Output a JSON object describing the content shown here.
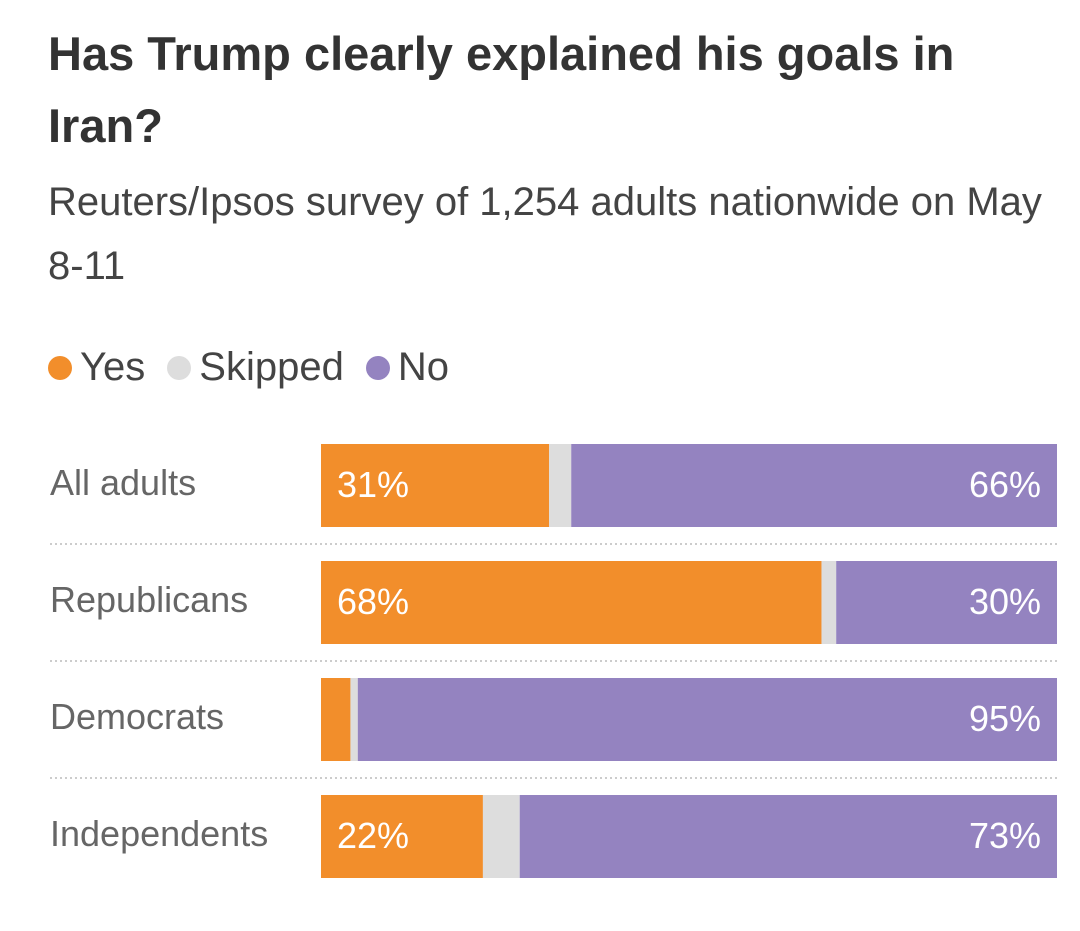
{
  "chart_data": {
    "type": "bar",
    "orientation": "horizontal",
    "stacked": true,
    "title": "Has Trump clearly explained his goals in Iran?",
    "subtitle": "Reuters/Ipsos survey of 1,254 adults nationwide on May 8-11",
    "categories": [
      "All adults",
      "Republicans",
      "Democrats",
      "Independents"
    ],
    "xlim": [
      0,
      100
    ],
    "series": [
      {
        "name": "Yes",
        "color": "#f28e2b",
        "values": [
          31,
          68,
          4,
          22
        ],
        "value_labels": [
          "31%",
          "68%",
          null,
          "22%"
        ]
      },
      {
        "name": "Skipped",
        "color": "#dddddd",
        "values": [
          3,
          2,
          1,
          5
        ]
      },
      {
        "name": "No",
        "color": "#9483c0",
        "values": [
          66,
          30,
          95,
          73
        ],
        "value_labels": [
          "66%",
          "30%",
          "95%",
          "73%"
        ]
      }
    ]
  }
}
